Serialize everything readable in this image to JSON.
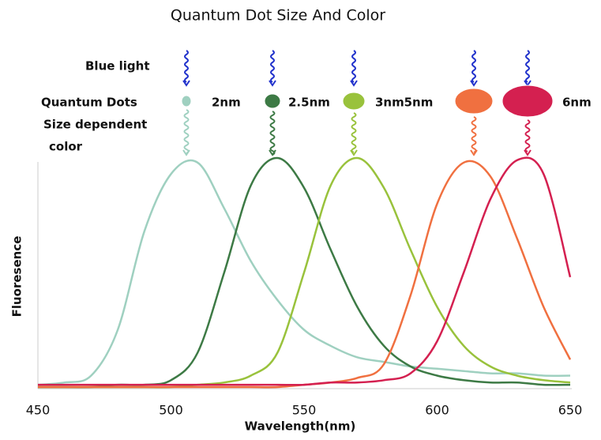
{
  "chart_data": {
    "type": "line",
    "title": "Quantum Dot Size And Color",
    "x_label": "Wavelength(nm)",
    "y_label": "Fluoresence",
    "annotations": {
      "blue_light": "Blue light",
      "quantum_dots": "Quantum Dots",
      "size_dependent": "Size dependent",
      "color": "color"
    },
    "x": [
      450,
      460,
      470,
      480,
      490,
      500,
      510,
      520,
      530,
      540,
      550,
      560,
      570,
      580,
      590,
      600,
      610,
      620,
      630,
      640,
      650
    ],
    "xlim": [
      450,
      650
    ],
    "xticks": [
      450,
      500,
      550,
      600,
      650
    ],
    "ylim": [
      0,
      1
    ],
    "series": [
      {
        "name": "2nm",
        "color": "#9fd0c0",
        "values": [
          0.01,
          0.02,
          0.05,
          0.25,
          0.68,
          0.93,
          0.98,
          0.78,
          0.55,
          0.38,
          0.25,
          0.18,
          0.13,
          0.11,
          0.09,
          0.08,
          0.07,
          0.06,
          0.06,
          0.05,
          0.05
        ]
      },
      {
        "name": "2.5nm",
        "color": "#3d7a45",
        "values": [
          0,
          0,
          0,
          0.01,
          0.01,
          0.03,
          0.15,
          0.5,
          0.88,
          1.0,
          0.87,
          0.6,
          0.35,
          0.18,
          0.09,
          0.05,
          0.03,
          0.02,
          0.02,
          0.01,
          0.01
        ]
      },
      {
        "name": "3nm",
        "color": "#99c23c",
        "values": [
          0,
          0,
          0,
          0,
          0,
          0,
          0.01,
          0.02,
          0.05,
          0.15,
          0.5,
          0.88,
          1.0,
          0.87,
          0.6,
          0.35,
          0.18,
          0.09,
          0.05,
          0.03,
          0.02
        ]
      },
      {
        "name": "5nm",
        "color": "#f07040",
        "values": [
          0,
          0,
          0,
          0,
          0,
          0,
          0,
          0,
          0,
          0,
          0.01,
          0.02,
          0.04,
          0.1,
          0.4,
          0.8,
          0.98,
          0.92,
          0.65,
          0.35,
          0.12
        ]
      },
      {
        "name": "6nm",
        "color": "#d42050",
        "values": [
          0.01,
          0.01,
          0.01,
          0.01,
          0.01,
          0.01,
          0.01,
          0.01,
          0.01,
          0.01,
          0.01,
          0.02,
          0.02,
          0.03,
          0.06,
          0.2,
          0.5,
          0.82,
          0.99,
          0.93,
          0.48
        ]
      }
    ]
  }
}
